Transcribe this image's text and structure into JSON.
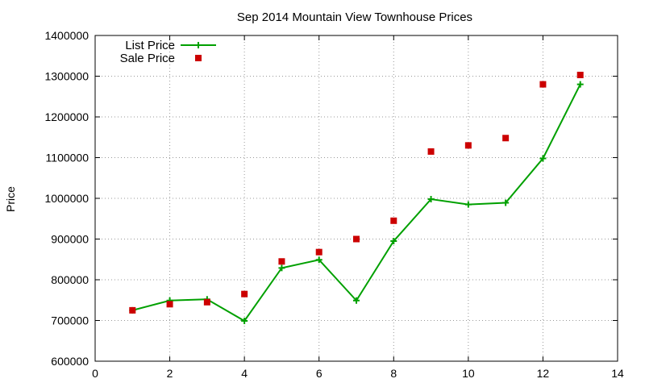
{
  "chart_data": {
    "type": "line",
    "title": "Sep 2014 Mountain View Townhouse Prices",
    "xlabel": "",
    "ylabel": "Price",
    "xlim": [
      0,
      14
    ],
    "ylim": [
      600000,
      1400000
    ],
    "xticks": [
      0,
      2,
      4,
      6,
      8,
      10,
      12,
      14
    ],
    "yticks": [
      600000,
      700000,
      800000,
      900000,
      1000000,
      1100000,
      1200000,
      1300000,
      1400000
    ],
    "grid": true,
    "legend_position": "top-left",
    "series": [
      {
        "name": "List Price",
        "style": "line-with-plus-markers",
        "color": "#00a000",
        "x": [
          1,
          2,
          3,
          4,
          5,
          6,
          7,
          8,
          9,
          10,
          11,
          12,
          13
        ],
        "y": [
          725000,
          749000,
          752000,
          699000,
          829000,
          849000,
          749000,
          895000,
          998000,
          985000,
          989000,
          1098000,
          1280000
        ]
      },
      {
        "name": "Sale Price",
        "style": "square-markers",
        "color": "#cc0000",
        "x": [
          1,
          2,
          3,
          4,
          5,
          6,
          7,
          8,
          9,
          10,
          11,
          12,
          13
        ],
        "y": [
          725000,
          740000,
          745000,
          765000,
          845000,
          868000,
          900000,
          945000,
          1115000,
          1130000,
          1148000,
          1280000,
          1303000
        ]
      }
    ]
  }
}
